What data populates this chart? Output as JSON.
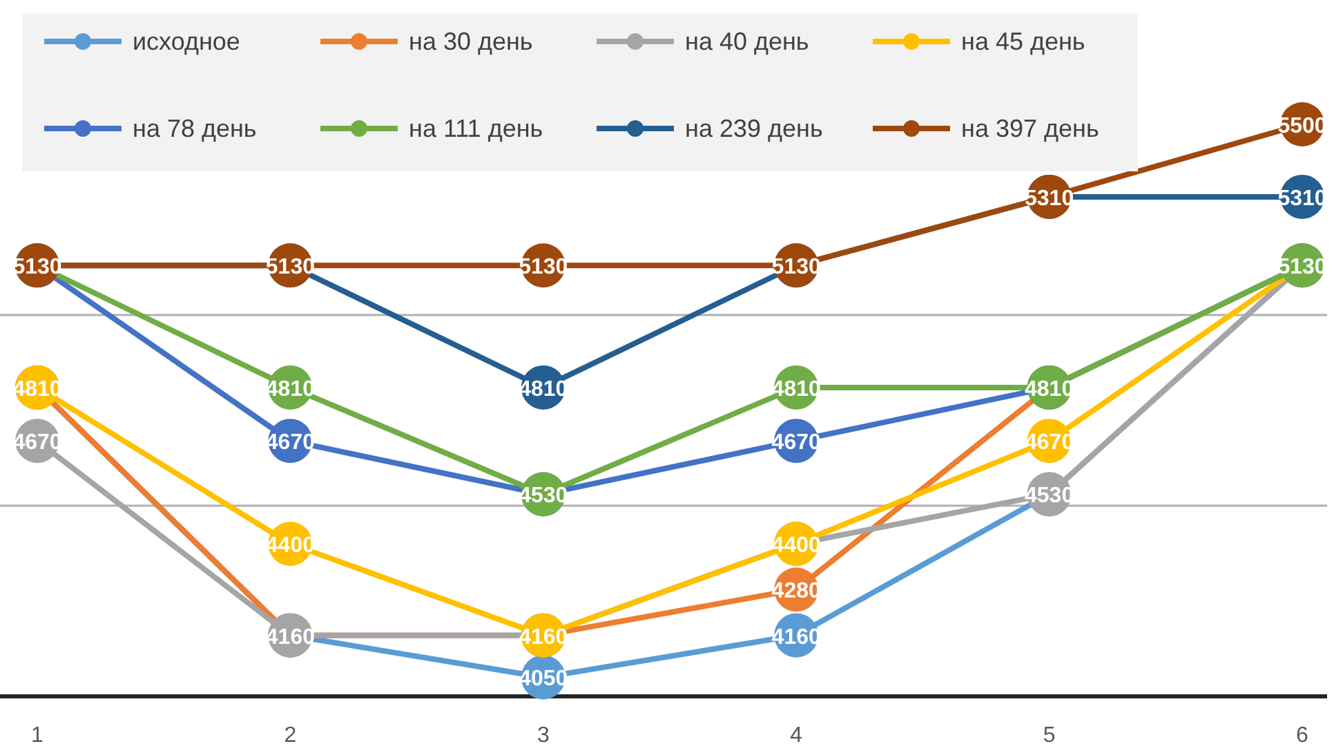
{
  "chart_data": {
    "type": "line",
    "categories": [
      "1",
      "2",
      "3",
      "4",
      "5",
      "6"
    ],
    "series": [
      {
        "name": "исходное",
        "color": "#5b9bd5",
        "values": [
          4810,
          4160,
          4050,
          4160,
          4530,
          5130
        ],
        "value_labels": [
          null,
          null,
          "4050",
          "4160",
          null,
          null
        ]
      },
      {
        "name": "на 30 день",
        "color": "#ed7d31",
        "values": [
          4810,
          4160,
          4160,
          4280,
          4810,
          5130
        ],
        "value_labels": [
          null,
          null,
          null,
          "4280",
          null,
          null
        ]
      },
      {
        "name": "на 40 день",
        "color": "#a5a5a5",
        "values": [
          4670,
          4160,
          4160,
          4400,
          4530,
          5130
        ],
        "value_labels": [
          "4670",
          "4160",
          null,
          null,
          "4530",
          null
        ]
      },
      {
        "name": "на 45 день",
        "color": "#ffc000",
        "values": [
          4810,
          4400,
          4160,
          4400,
          4670,
          5130
        ],
        "value_labels": [
          "4810",
          "4400",
          "4160",
          "4400",
          "4670",
          null
        ]
      },
      {
        "name": "на 78 день",
        "color": "#4472c4",
        "values": [
          5130,
          4670,
          4530,
          4670,
          4810,
          5130
        ],
        "value_labels": [
          null,
          "4670",
          null,
          "4670",
          null,
          null
        ]
      },
      {
        "name": "на 111 день",
        "color": "#70ad47",
        "values": [
          5130,
          4810,
          4530,
          4810,
          4810,
          5130
        ],
        "value_labels": [
          null,
          "4810",
          "4530",
          "4810",
          "4810",
          "5130"
        ]
      },
      {
        "name": "на 239 день",
        "color": "#255e91",
        "values": [
          5130,
          5130,
          4810,
          5130,
          5310,
          5310
        ],
        "value_labels": [
          null,
          null,
          "4810",
          null,
          null,
          "5310"
        ]
      },
      {
        "name": "на 397 день",
        "color": "#9e480e",
        "values": [
          5130,
          5130,
          5130,
          5130,
          5310,
          5500
        ],
        "value_labels": [
          "5130",
          "5130",
          "5130",
          "5130",
          "5310",
          "5500"
        ]
      }
    ],
    "yticks": [
      {
        "value": 4000,
        "label": null
      }
    ],
    "ref_lines": [
      {
        "axis": "y",
        "value": 4500,
        "color": "#b0b0b0"
      },
      {
        "axis": "y",
        "value": 5000,
        "color": "#b0b0b0"
      }
    ],
    "tick_labels": "x",
    "legend": "top left",
    "marker": "circle",
    "line_style": "solid"
  }
}
